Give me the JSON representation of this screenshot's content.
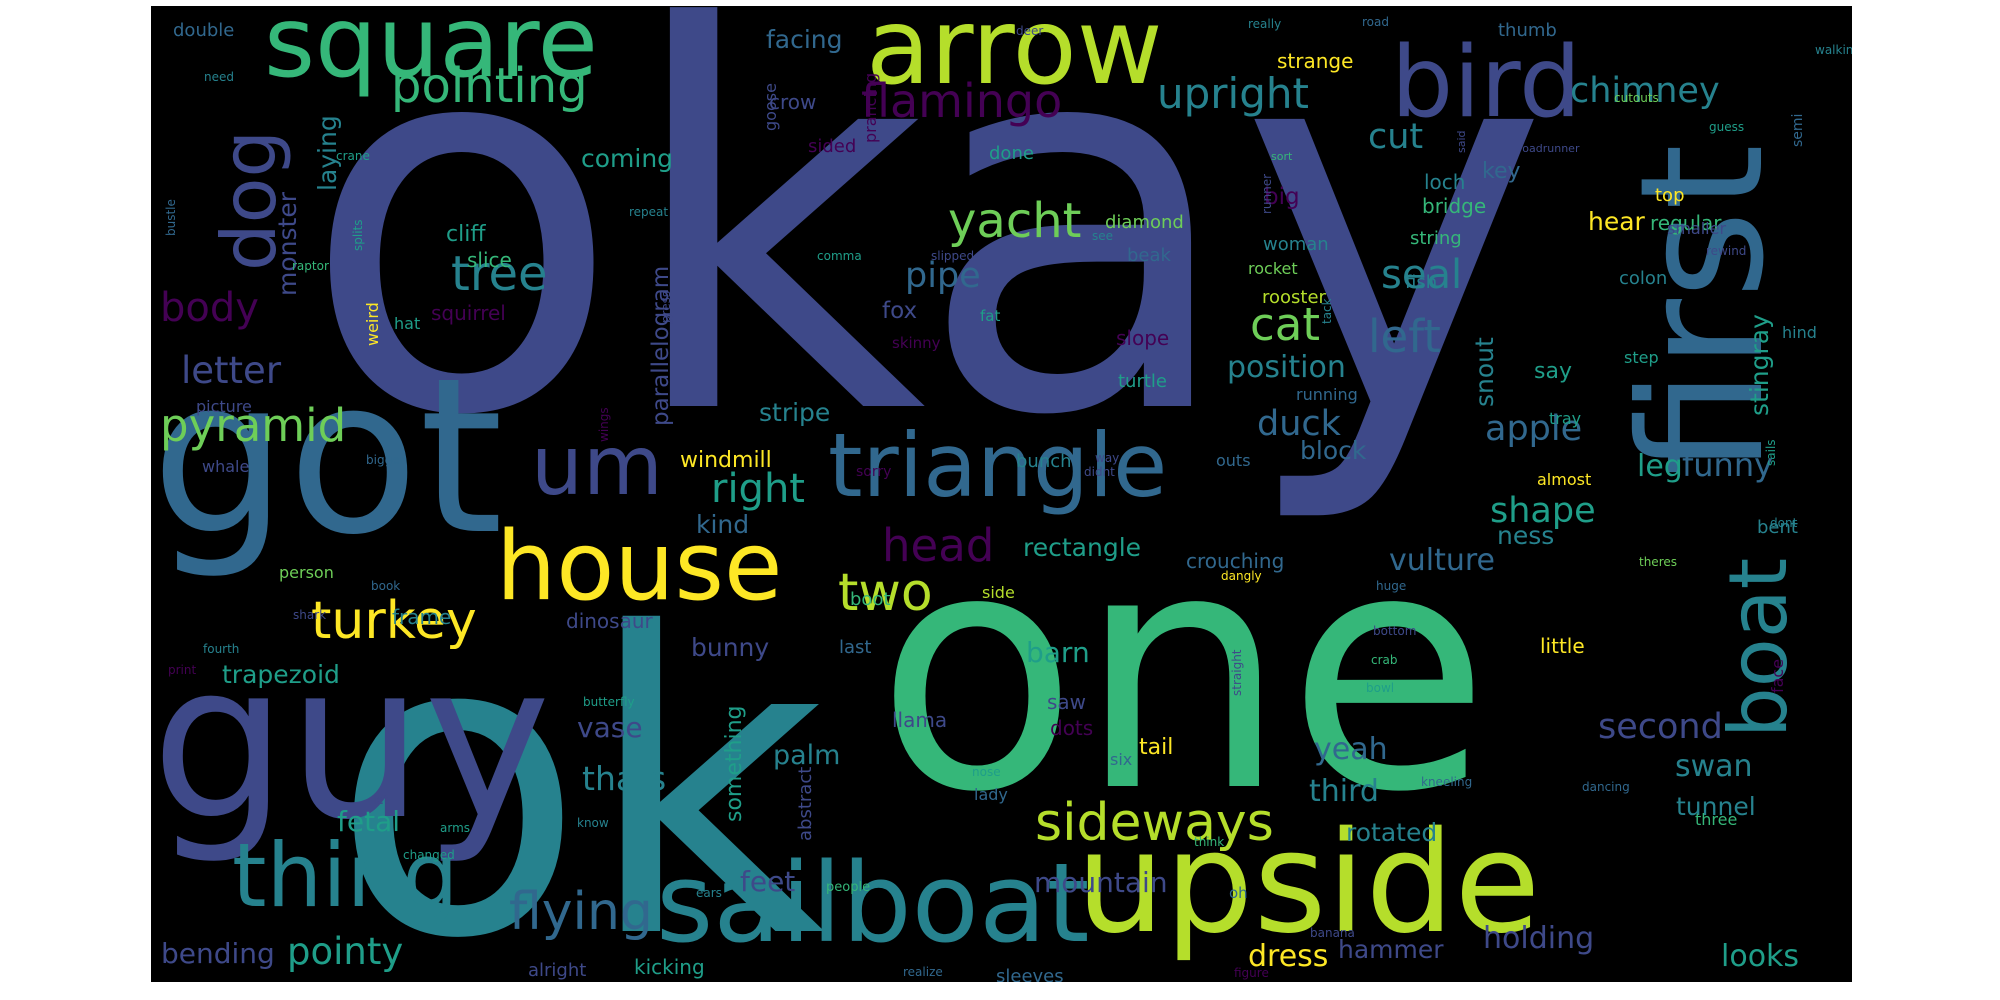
{
  "cloud": {
    "background": "#000000",
    "palette": {
      "purple": "#440154",
      "indigo": "#3e4989",
      "blue": "#31688e",
      "teal": "#26828e",
      "sea": "#1f9e89",
      "green": "#35b779",
      "lime": "#6ece58",
      "yellowgreen": "#b5de2b",
      "yellow": "#fde725"
    },
    "words": [
      {
        "text": "okay",
        "color": "indigo"
      },
      {
        "text": "ok",
        "color": "teal"
      },
      {
        "text": "one",
        "color": "green"
      },
      {
        "text": "got",
        "color": "blue"
      },
      {
        "text": "guy",
        "color": "indigo"
      },
      {
        "text": "first",
        "color": "blue"
      },
      {
        "text": "upside",
        "color": "yellowgreen"
      },
      {
        "text": "sailboat",
        "color": "teal"
      },
      {
        "text": "arrow",
        "color": "yellowgreen"
      },
      {
        "text": "square",
        "color": "green"
      },
      {
        "text": "bird",
        "color": "indigo"
      },
      {
        "text": "house",
        "color": "yellow"
      },
      {
        "text": "triangle",
        "color": "blue"
      },
      {
        "text": "thing",
        "color": "teal"
      },
      {
        "text": "um",
        "color": "indigo"
      },
      {
        "text": "boat",
        "color": "teal"
      },
      {
        "text": "dog",
        "color": "indigo"
      },
      {
        "text": "pointing",
        "color": "green"
      },
      {
        "text": "flamingo",
        "color": "purple"
      },
      {
        "text": "upright",
        "color": "teal"
      },
      {
        "text": "chimney",
        "color": "teal"
      },
      {
        "text": "yacht",
        "color": "lime"
      },
      {
        "text": "tree",
        "color": "teal"
      },
      {
        "text": "turkey",
        "color": "yellow"
      },
      {
        "text": "pyramid",
        "color": "lime"
      },
      {
        "text": "sideways",
        "color": "yellowgreen"
      },
      {
        "text": "flying",
        "color": "blue"
      },
      {
        "text": "two",
        "color": "yellowgreen"
      },
      {
        "text": "head",
        "color": "purple"
      },
      {
        "text": "left",
        "color": "blue"
      },
      {
        "text": "cat",
        "color": "lime"
      },
      {
        "text": "seal",
        "color": "teal"
      },
      {
        "text": "body",
        "color": "purple"
      },
      {
        "text": "letter",
        "color": "indigo"
      },
      {
        "text": "right",
        "color": "sea"
      },
      {
        "text": "cut",
        "color": "teal"
      },
      {
        "text": "pipe",
        "color": "blue"
      },
      {
        "text": "duck",
        "color": "blue"
      },
      {
        "text": "position",
        "color": "teal"
      },
      {
        "text": "funny",
        "color": "blue"
      },
      {
        "text": "shape",
        "color": "sea"
      },
      {
        "text": "apple",
        "color": "blue"
      },
      {
        "text": "leg",
        "color": "sea"
      },
      {
        "text": "vulture",
        "color": "blue"
      },
      {
        "text": "second",
        "color": "indigo"
      },
      {
        "text": "swan",
        "color": "teal"
      },
      {
        "text": "yeah",
        "color": "blue"
      },
      {
        "text": "third",
        "color": "teal"
      },
      {
        "text": "tunnel",
        "color": "teal"
      },
      {
        "text": "looks",
        "color": "sea"
      },
      {
        "text": "holding",
        "color": "indigo"
      },
      {
        "text": "hammer",
        "color": "indigo"
      },
      {
        "text": "dress",
        "color": "yellow"
      },
      {
        "text": "pointy",
        "color": "sea"
      },
      {
        "text": "bending",
        "color": "indigo"
      },
      {
        "text": "mountain",
        "color": "indigo"
      },
      {
        "text": "rotated",
        "color": "teal"
      },
      {
        "text": "feet",
        "color": "indigo"
      },
      {
        "text": "fetal",
        "color": "sea"
      },
      {
        "text": "thats",
        "color": "teal"
      },
      {
        "text": "vase",
        "color": "indigo"
      },
      {
        "text": "palm",
        "color": "teal"
      },
      {
        "text": "barn",
        "color": "sea"
      },
      {
        "text": "trapezoid",
        "color": "sea"
      },
      {
        "text": "frame",
        "color": "teal"
      },
      {
        "text": "bunny",
        "color": "indigo"
      },
      {
        "text": "rectangle",
        "color": "sea"
      },
      {
        "text": "crouching",
        "color": "blue"
      },
      {
        "text": "block",
        "color": "blue"
      },
      {
        "text": "windmill",
        "color": "yellow"
      },
      {
        "text": "stripe",
        "color": "teal"
      },
      {
        "text": "parallelogram",
        "color": "indigo"
      },
      {
        "text": "kind",
        "color": "blue"
      },
      {
        "text": "monster",
        "color": "indigo"
      },
      {
        "text": "laying",
        "color": "teal"
      },
      {
        "text": "coming",
        "color": "sea"
      },
      {
        "text": "facing",
        "color": "blue"
      },
      {
        "text": "crow",
        "color": "indigo"
      },
      {
        "text": "cliff",
        "color": "sea"
      },
      {
        "text": "slice",
        "color": "green"
      },
      {
        "text": "fox",
        "color": "indigo"
      },
      {
        "text": "squirrel",
        "color": "purple"
      },
      {
        "text": "big",
        "color": "purple"
      },
      {
        "text": "woman",
        "color": "teal"
      },
      {
        "text": "bridge",
        "color": "green"
      },
      {
        "text": "loch",
        "color": "teal"
      },
      {
        "text": "key",
        "color": "blue"
      },
      {
        "text": "hear",
        "color": "yellow"
      },
      {
        "text": "regular",
        "color": "green"
      },
      {
        "text": "stingray",
        "color": "sea"
      },
      {
        "text": "snout",
        "color": "teal"
      },
      {
        "text": "say",
        "color": "sea"
      },
      {
        "text": "ness",
        "color": "teal"
      },
      {
        "text": "bent",
        "color": "teal"
      },
      {
        "text": "dinosaur",
        "color": "indigo"
      },
      {
        "text": "boot",
        "color": "green"
      },
      {
        "text": "side",
        "color": "yellowgreen"
      },
      {
        "text": "last",
        "color": "blue"
      },
      {
        "text": "saw",
        "color": "indigo"
      },
      {
        "text": "llama",
        "color": "indigo"
      },
      {
        "text": "dots",
        "color": "purple"
      },
      {
        "text": "tail",
        "color": "yellow"
      },
      {
        "text": "six",
        "color": "blue"
      },
      {
        "text": "lady",
        "color": "blue"
      },
      {
        "text": "abstract",
        "color": "indigo"
      },
      {
        "text": "something",
        "color": "sea"
      },
      {
        "text": "kicking",
        "color": "sea"
      },
      {
        "text": "alright",
        "color": "indigo"
      },
      {
        "text": "sleeves",
        "color": "blue"
      },
      {
        "text": "strange",
        "color": "yellow"
      },
      {
        "text": "thumb",
        "color": "blue"
      },
      {
        "text": "double",
        "color": "blue"
      },
      {
        "text": "goose",
        "color": "indigo"
      },
      {
        "text": "prancing",
        "color": "purple"
      },
      {
        "text": "diamond",
        "color": "lime"
      },
      {
        "text": "beak",
        "color": "blue"
      },
      {
        "text": "slope",
        "color": "purple"
      },
      {
        "text": "turtle",
        "color": "sea"
      },
      {
        "text": "bunch",
        "color": "teal"
      },
      {
        "text": "rooster",
        "color": "yellowgreen"
      },
      {
        "text": "string",
        "color": "green"
      },
      {
        "text": "fish",
        "color": "teal"
      },
      {
        "text": "colon",
        "color": "teal"
      },
      {
        "text": "rocket",
        "color": "lime"
      },
      {
        "text": "smaller",
        "color": "indigo"
      },
      {
        "text": "top",
        "color": "yellow"
      },
      {
        "text": "step",
        "color": "sea"
      },
      {
        "text": "hind",
        "color": "teal"
      },
      {
        "text": "tray",
        "color": "sea"
      },
      {
        "text": "running",
        "color": "blue"
      },
      {
        "text": "outs",
        "color": "blue"
      },
      {
        "text": "almost",
        "color": "yellow"
      },
      {
        "text": "little",
        "color": "yellow"
      },
      {
        "text": "done",
        "color": "sea"
      },
      {
        "text": "sided",
        "color": "purple"
      },
      {
        "text": "weird",
        "color": "yellow"
      },
      {
        "text": "hat",
        "color": "sea"
      },
      {
        "text": "picture",
        "color": "indigo"
      },
      {
        "text": "whale",
        "color": "indigo"
      },
      {
        "text": "person",
        "color": "lime"
      },
      {
        "text": "sorry",
        "color": "purple"
      },
      {
        "text": "skinny",
        "color": "purple"
      },
      {
        "text": "fat",
        "color": "sea"
      },
      {
        "text": "comma",
        "color": "sea"
      },
      {
        "text": "slipped",
        "color": "indigo"
      },
      {
        "text": "see",
        "color": "teal"
      },
      {
        "text": "repeat",
        "color": "teal"
      },
      {
        "text": "raptor",
        "color": "green"
      },
      {
        "text": "bigger",
        "color": "blue"
      },
      {
        "text": "wings",
        "color": "purple"
      },
      {
        "text": "book",
        "color": "blue"
      },
      {
        "text": "shark",
        "color": "indigo"
      },
      {
        "text": "butterfly",
        "color": "sea"
      },
      {
        "text": "print",
        "color": "purple"
      },
      {
        "text": "fourth",
        "color": "teal"
      },
      {
        "text": "changed",
        "color": "sea"
      },
      {
        "text": "arms",
        "color": "sea"
      },
      {
        "text": "know",
        "color": "teal"
      },
      {
        "text": "let",
        "color": "indigo"
      },
      {
        "text": "ears",
        "color": "teal"
      },
      {
        "text": "people",
        "color": "green"
      },
      {
        "text": "realize",
        "color": "blue"
      },
      {
        "text": "oh",
        "color": "blue"
      },
      {
        "text": "think",
        "color": "green"
      },
      {
        "text": "figure",
        "color": "purple"
      },
      {
        "text": "banana",
        "color": "indigo"
      },
      {
        "text": "bowl",
        "color": "sea"
      },
      {
        "text": "crab",
        "color": "green"
      },
      {
        "text": "bottom",
        "color": "indigo"
      },
      {
        "text": "huge",
        "color": "blue"
      },
      {
        "text": "dangly",
        "color": "yellow"
      },
      {
        "text": "theres",
        "color": "lime"
      },
      {
        "text": "dont",
        "color": "teal"
      },
      {
        "text": "sails",
        "color": "sea"
      },
      {
        "text": "face",
        "color": "purple"
      },
      {
        "text": "three",
        "color": "green"
      },
      {
        "text": "dancing",
        "color": "blue"
      },
      {
        "text": "kneeling",
        "color": "blue"
      },
      {
        "text": "nose",
        "color": "sea"
      },
      {
        "text": "straight",
        "color": "indigo"
      },
      {
        "text": "way",
        "color": "indigo"
      },
      {
        "text": "didnt",
        "color": "indigo"
      },
      {
        "text": "press",
        "color": "indigo"
      },
      {
        "text": "tack",
        "color": "teal"
      },
      {
        "text": "need",
        "color": "teal"
      },
      {
        "text": "deer",
        "color": "indigo"
      },
      {
        "text": "road",
        "color": "blue"
      },
      {
        "text": "really",
        "color": "teal"
      },
      {
        "text": "walking",
        "color": "teal"
      },
      {
        "text": "semi",
        "color": "blue"
      },
      {
        "text": "guess",
        "color": "sea"
      },
      {
        "text": "roadrunner",
        "color": "indigo"
      },
      {
        "text": "said",
        "color": "indigo"
      },
      {
        "text": "cutouts",
        "color": "lime"
      },
      {
        "text": "sort",
        "color": "green"
      },
      {
        "text": "runner",
        "color": "indigo"
      },
      {
        "text": "rewind",
        "color": "indigo"
      },
      {
        "text": "crane",
        "color": "sea"
      },
      {
        "text": "bustle",
        "color": "blue"
      },
      {
        "text": "splits",
        "color": "sea"
      }
    ]
  }
}
